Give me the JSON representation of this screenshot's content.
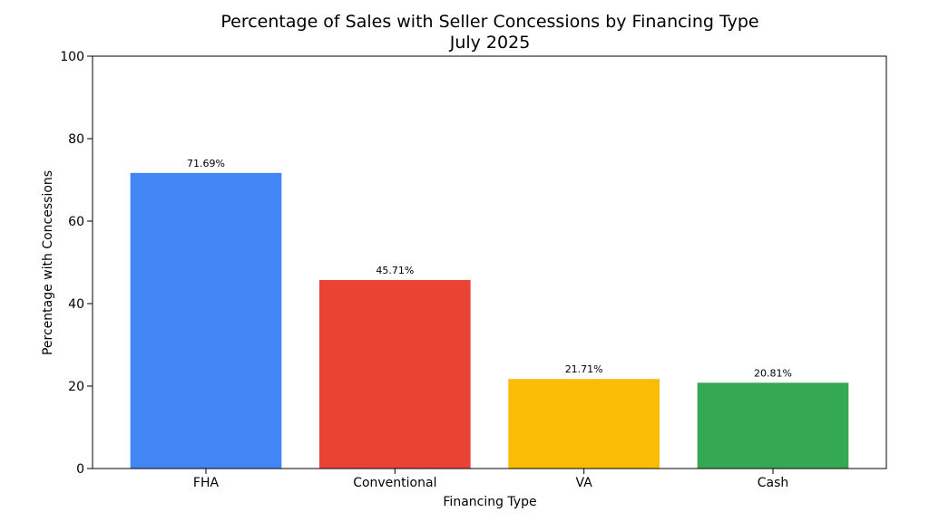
{
  "chart_data": {
    "type": "bar",
    "title": "Percentage of Sales with Seller Concessions by Financing Type",
    "subtitle": "July 2025",
    "xlabel": "Financing Type",
    "ylabel": "Percentage with Concessions",
    "ylim": [
      0,
      100
    ],
    "yticks": [
      0,
      20,
      40,
      60,
      80,
      100
    ],
    "ytick_labels": [
      "0",
      "20",
      "40",
      "60",
      "80",
      "100"
    ],
    "categories": [
      "FHA",
      "Conventional",
      "VA",
      "Cash"
    ],
    "values": [
      71.69,
      45.71,
      21.71,
      20.81
    ],
    "data_labels": [
      "71.69%",
      "45.71%",
      "21.71%",
      "20.81%"
    ],
    "colors": [
      "#4285F4",
      "#EA4335",
      "#FBBC05",
      "#34A853"
    ],
    "grid": false,
    "legend": "none"
  }
}
